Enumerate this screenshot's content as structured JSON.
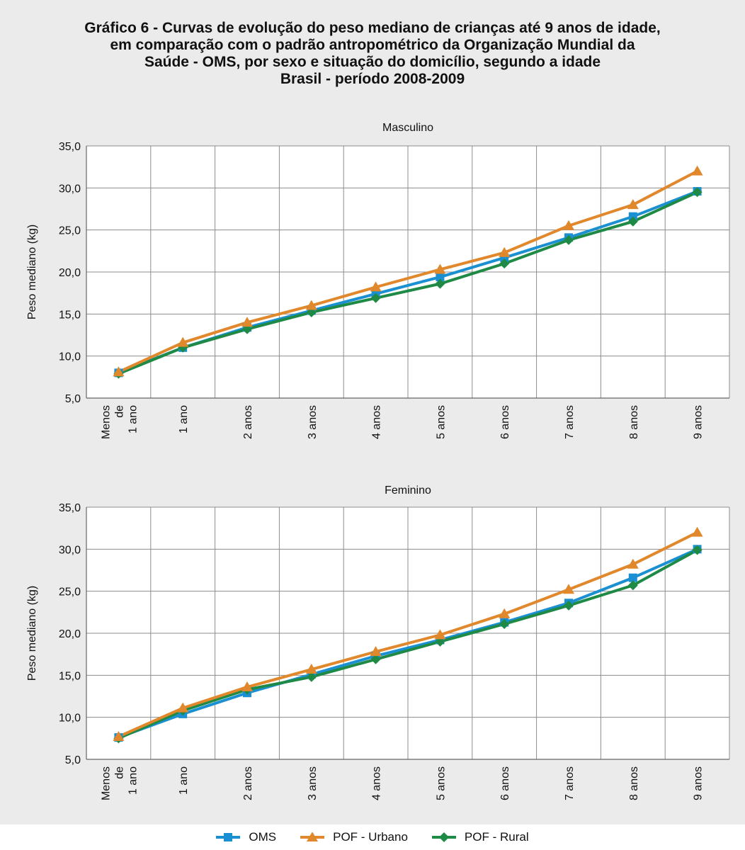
{
  "title_lines": [
    "Gráfico 6 - Curvas de evolução do peso mediano de crianças até 9 anos de idade,",
    "em comparação com o padrão antropométrico da Organização Mundial da",
    "Saúde - OMS, por sexo e situação do domicílio, segundo a idade",
    "Brasil - período 2008-2009"
  ],
  "colors": {
    "OMS": "#1a8fd1",
    "POF - Urbano": "#e0882b",
    "POF - Rural": "#1e8a45",
    "background": "#ebebeb",
    "plot_area": "#ffffff",
    "grid": "#8c8c8c"
  },
  "chart_data": [
    {
      "type": "line",
      "title": "Masculino",
      "ylabel": "Peso mediano (kg)",
      "xlabel": "",
      "ylim": [
        5,
        35
      ],
      "yticks": [
        "5,0",
        "10,0",
        "15,0",
        "20,0",
        "25,0",
        "30,0",
        "35,0"
      ],
      "categories": [
        "Menos de 1 ano",
        "1 ano",
        "2 anos",
        "3 anos",
        "4 anos",
        "5 anos",
        "6 anos",
        "7 anos",
        "8 anos",
        "9 anos"
      ],
      "grid": true,
      "series": [
        {
          "name": "OMS",
          "marker": "square",
          "values": [
            8.0,
            11.0,
            13.4,
            15.4,
            17.4,
            19.4,
            21.7,
            24.1,
            26.6,
            29.6
          ]
        },
        {
          "name": "POF - Urbano",
          "marker": "triangle",
          "values": [
            8.1,
            11.6,
            14.0,
            16.0,
            18.2,
            20.3,
            22.3,
            25.5,
            28.0,
            32.0
          ]
        },
        {
          "name": "POF - Rural",
          "marker": "diamond",
          "values": [
            7.9,
            11.0,
            13.2,
            15.2,
            16.9,
            18.6,
            21.0,
            23.8,
            26.0,
            29.5
          ]
        }
      ]
    },
    {
      "type": "line",
      "title": "Feminino",
      "ylabel": "Peso mediano (kg)",
      "xlabel": "",
      "ylim": [
        5,
        35
      ],
      "yticks": [
        "5,0",
        "10,0",
        "15,0",
        "20,0",
        "25,0",
        "30,0",
        "35,0"
      ],
      "categories": [
        "Menos de 1 ano",
        "1 ano",
        "2 anos",
        "3 anos",
        "4 anos",
        "5 anos",
        "6 anos",
        "7 anos",
        "8 anos",
        "9 anos"
      ],
      "grid": true,
      "series": [
        {
          "name": "OMS",
          "marker": "square",
          "values": [
            7.6,
            10.4,
            12.9,
            15.1,
            17.3,
            19.2,
            21.3,
            23.6,
            26.6,
            30.0
          ]
        },
        {
          "name": "POF - Urbano",
          "marker": "triangle",
          "values": [
            7.7,
            11.1,
            13.6,
            15.7,
            17.8,
            19.8,
            22.3,
            25.2,
            28.2,
            32.0
          ]
        },
        {
          "name": "POF - Rural",
          "marker": "diamond",
          "values": [
            7.5,
            10.8,
            13.3,
            14.8,
            16.9,
            19.0,
            21.1,
            23.3,
            25.7,
            29.9
          ]
        }
      ]
    }
  ],
  "legend": [
    {
      "label": "OMS",
      "marker": "square"
    },
    {
      "label": "POF - Urbano",
      "marker": "triangle"
    },
    {
      "label": "POF - Rural",
      "marker": "diamond"
    }
  ]
}
